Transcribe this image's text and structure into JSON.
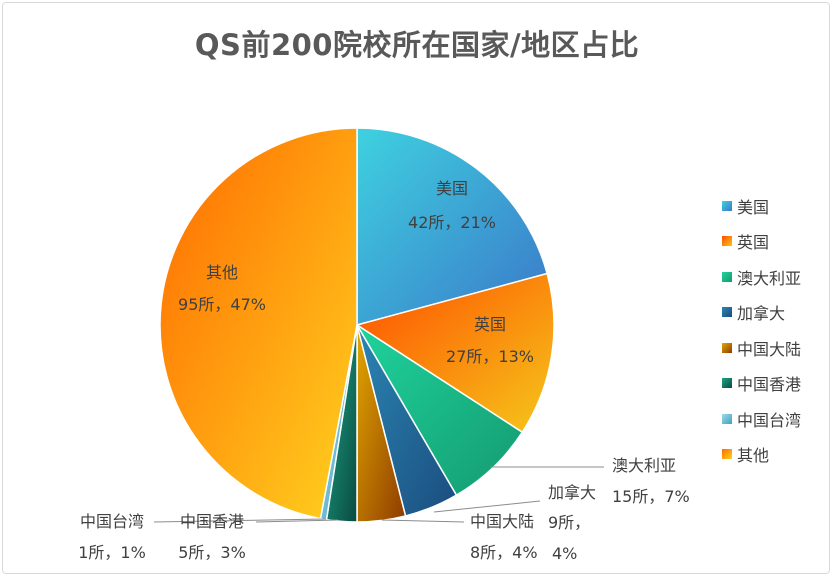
{
  "chart_data": {
    "type": "pie",
    "title": "QS前200院校所在国家/地区占比",
    "categories": [
      "美国",
      "英国",
      "澳大利亚",
      "加拿大",
      "中国大陆",
      "中国香港",
      "中国台湾",
      "其他"
    ],
    "values": [
      42,
      27,
      15,
      9,
      8,
      5,
      1,
      95
    ],
    "data_labels": [
      {
        "name": "美国",
        "value": "42所，21%"
      },
      {
        "name": "英国",
        "value": "27所，13%"
      },
      {
        "name": "澳大利亚",
        "value": "15所，7%"
      },
      {
        "name": "加拿大",
        "value": "9所，",
        "value2": "4%"
      },
      {
        "name": "中国大陆",
        "value": "8所，4%"
      },
      {
        "name": "中国香港",
        "value": "5所，3%"
      },
      {
        "name": "中国台湾",
        "value": "1所，1%"
      },
      {
        "name": "其他",
        "value": "95所，47%"
      }
    ],
    "colors": [
      [
        "#3fd1e0",
        "#3a78c8"
      ],
      [
        "#ff4d00",
        "#f5c71a"
      ],
      [
        "#1fd39c",
        "#149a70"
      ],
      [
        "#2a86b4",
        "#1b4d7e"
      ],
      [
        "#e2a800",
        "#8e3b00"
      ],
      [
        "#1da586",
        "#0a4a40"
      ],
      [
        "#9fdbe6",
        "#3f9fc2"
      ],
      [
        "#ff6a00",
        "#ffd21f"
      ]
    ],
    "legend": "right"
  }
}
